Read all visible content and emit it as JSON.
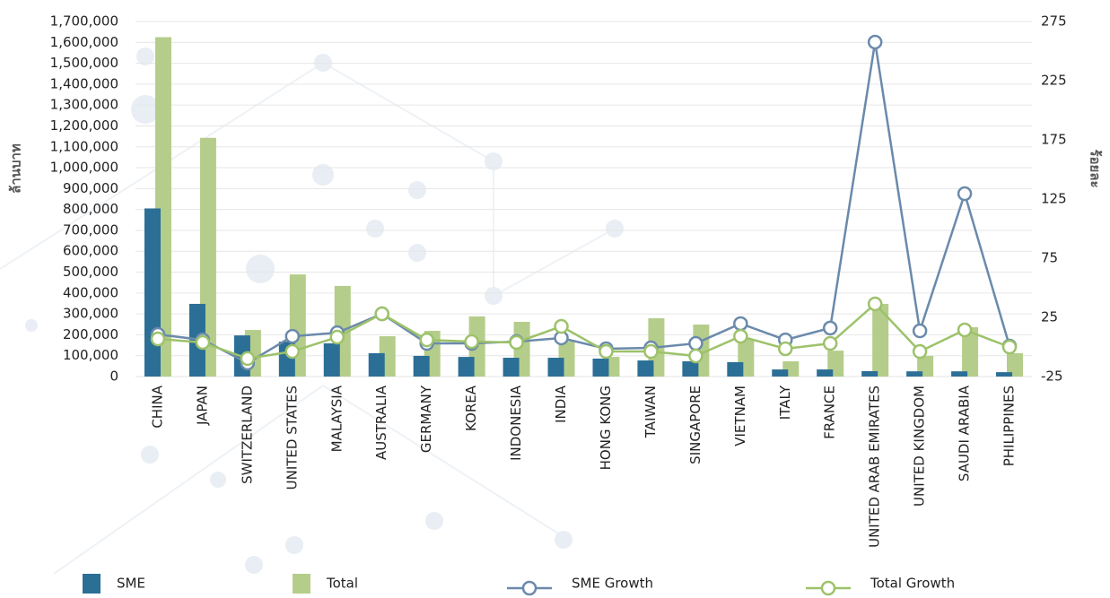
{
  "chart_data": {
    "type": "bar",
    "y_label": "ล้านบาท",
    "y2_label": "ร้อยละ",
    "categories": [
      "CHINA",
      "JAPAN",
      "SWITZERLAND",
      "UNITED STATES",
      "MALAYSIA",
      "AUSTRALIA",
      "GERMANY",
      "KOREA",
      "INDONESIA",
      "INDIA",
      "HONG KONG",
      "TAIWAN",
      "SINGAPORE",
      "VIETNAM",
      "ITALY",
      "FRANCE",
      "UNITED ARAB EMIRATES",
      "UNITED KINGDOM",
      "SAUDI ARABIA",
      "PHILIPPINES"
    ],
    "series": [
      {
        "name": "SME",
        "type": "bar",
        "color": "#2b6f96",
        "values": [
          805000,
          348000,
          197000,
          167000,
          159000,
          112000,
          99000,
          94000,
          90000,
          90000,
          86000,
          77000,
          73000,
          69000,
          34000,
          34000,
          26000,
          25000,
          25000,
          21000
        ]
      },
      {
        "name": "Total",
        "type": "bar",
        "color": "#b5cd8a",
        "values": [
          1625000,
          1143000,
          223000,
          489000,
          434000,
          193000,
          219000,
          288000,
          262000,
          170000,
          94000,
          279000,
          249000,
          180000,
          73000,
          124000,
          348000,
          99000,
          236000,
          112000
        ]
      },
      {
        "name": "SME Growth",
        "type": "line",
        "axis": "y2",
        "color": "#6a8aab",
        "values": [
          10.6,
          6,
          -13.6,
          9,
          12,
          28,
          3,
          3,
          4.5,
          7.6,
          -1.5,
          -0.8,
          3,
          19.7,
          6,
          16,
          257.6,
          13.6,
          129.5,
          0.8
        ]
      },
      {
        "name": "Total Growth",
        "type": "line",
        "axis": "y2",
        "color": "#9dc26a",
        "values": [
          6.8,
          3.8,
          -9.8,
          -3.8,
          8.3,
          28,
          6,
          4.5,
          3.8,
          17.4,
          -3.8,
          -3.8,
          -7.6,
          9,
          -1.5,
          3,
          36.4,
          -3.8,
          14.4,
          0
        ]
      }
    ],
    "ylim": [
      0,
      1700000
    ],
    "yticks": [
      0,
      {
        "value": 100000,
        "label": "100,000"
      },
      {
        "value": 200000,
        "label": "200,000"
      },
      {
        "value": 300000,
        "label": "300,000"
      },
      {
        "value": 400000,
        "label": "400,000"
      },
      {
        "value": 500000,
        "label": "500,000"
      },
      {
        "value": 600000,
        "label": "600,000"
      },
      {
        "value": 700000,
        "label": "700,000"
      },
      {
        "value": 800000,
        "label": "800,000"
      },
      {
        "value": 900000,
        "label": "900,000"
      },
      {
        "value": 1000000,
        "label": "1,000,000"
      },
      {
        "value": 1100000,
        "label": "1,100,000"
      },
      {
        "value": 1200000,
        "label": "1,200,000"
      },
      {
        "value": 1300000,
        "label": "1,300,000"
      },
      {
        "value": 1400000,
        "label": "1,400,000"
      },
      {
        "value": 1500000,
        "label": "1,500,000"
      },
      {
        "value": 1600000,
        "label": "1,600,000"
      },
      {
        "value": 1700000,
        "label": "1,700,000"
      }
    ],
    "y2lim": [
      -25,
      275
    ],
    "y2ticks": [
      -25,
      25,
      75,
      125,
      175,
      225,
      275
    ],
    "grid": true,
    "legend": "bottom"
  }
}
